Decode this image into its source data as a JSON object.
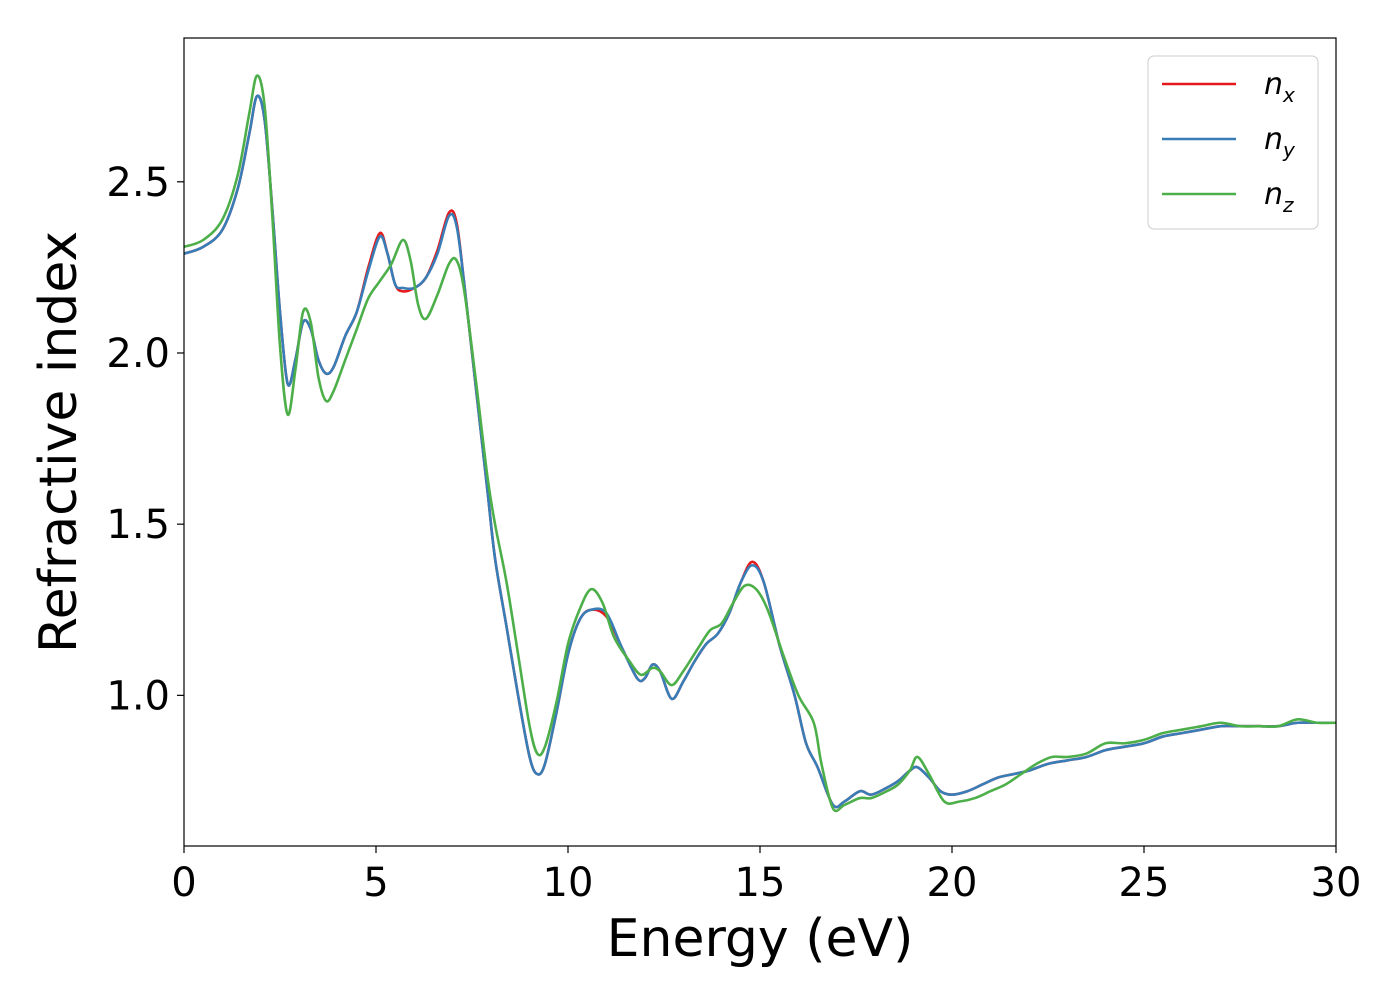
{
  "chart_data": {
    "type": "line",
    "title": "",
    "xlabel": "Energy (eV)",
    "ylabel": "Refractive index",
    "xlim": [
      0,
      30
    ],
    "ylim": [
      0.56,
      2.92
    ],
    "xticks": [
      0,
      5,
      10,
      15,
      20,
      25,
      30
    ],
    "yticks": [
      1.0,
      1.5,
      2.0,
      2.5
    ],
    "xtick_labels": [
      "0",
      "5",
      "10",
      "15",
      "20",
      "25",
      "30"
    ],
    "ytick_labels": [
      "1.0",
      "1.5",
      "2.0",
      "2.5"
    ],
    "grid": false,
    "legend_position": "top-right",
    "series": [
      {
        "name": "n",
        "subscript": "x",
        "color": "#e41a1c",
        "points": [
          [
            0,
            2.29
          ],
          [
            0.5,
            2.31
          ],
          [
            1.0,
            2.36
          ],
          [
            1.4,
            2.48
          ],
          [
            1.7,
            2.64
          ],
          [
            1.9,
            2.75
          ],
          [
            2.1,
            2.68
          ],
          [
            2.3,
            2.42
          ],
          [
            2.5,
            2.12
          ],
          [
            2.7,
            1.91
          ],
          [
            2.9,
            1.98
          ],
          [
            3.1,
            2.09
          ],
          [
            3.3,
            2.07
          ],
          [
            3.5,
            1.98
          ],
          [
            3.7,
            1.94
          ],
          [
            3.9,
            1.96
          ],
          [
            4.2,
            2.05
          ],
          [
            4.5,
            2.12
          ],
          [
            4.8,
            2.25
          ],
          [
            5.1,
            2.35
          ],
          [
            5.3,
            2.29
          ],
          [
            5.5,
            2.2
          ],
          [
            5.7,
            2.18
          ],
          [
            6.0,
            2.19
          ],
          [
            6.3,
            2.22
          ],
          [
            6.6,
            2.3
          ],
          [
            6.9,
            2.41
          ],
          [
            7.1,
            2.38
          ],
          [
            7.3,
            2.2
          ],
          [
            7.6,
            1.9
          ],
          [
            7.9,
            1.6
          ],
          [
            8.1,
            1.4
          ],
          [
            8.4,
            1.2
          ],
          [
            8.7,
            1.0
          ],
          [
            9.0,
            0.82
          ],
          [
            9.2,
            0.77
          ],
          [
            9.4,
            0.8
          ],
          [
            9.7,
            0.95
          ],
          [
            10.0,
            1.12
          ],
          [
            10.3,
            1.22
          ],
          [
            10.6,
            1.25
          ],
          [
            11.0,
            1.23
          ],
          [
            11.4,
            1.14
          ],
          [
            11.8,
            1.05
          ],
          [
            12.0,
            1.05
          ],
          [
            12.2,
            1.09
          ],
          [
            12.4,
            1.07
          ],
          [
            12.7,
            0.99
          ],
          [
            13.0,
            1.04
          ],
          [
            13.3,
            1.1
          ],
          [
            13.6,
            1.15
          ],
          [
            13.9,
            1.18
          ],
          [
            14.2,
            1.24
          ],
          [
            14.5,
            1.33
          ],
          [
            14.8,
            1.39
          ],
          [
            15.1,
            1.33
          ],
          [
            15.5,
            1.15
          ],
          [
            15.9,
            1.0
          ],
          [
            16.2,
            0.86
          ],
          [
            16.5,
            0.79
          ],
          [
            16.9,
            0.68
          ],
          [
            17.2,
            0.69
          ],
          [
            17.6,
            0.72
          ],
          [
            17.9,
            0.71
          ],
          [
            18.3,
            0.73
          ],
          [
            18.6,
            0.75
          ],
          [
            18.9,
            0.78
          ],
          [
            19.1,
            0.79
          ],
          [
            19.4,
            0.76
          ],
          [
            19.7,
            0.72
          ],
          [
            20.0,
            0.71
          ],
          [
            20.4,
            0.72
          ],
          [
            20.8,
            0.74
          ],
          [
            21.2,
            0.76
          ],
          [
            21.6,
            0.77
          ],
          [
            22.0,
            0.78
          ],
          [
            22.5,
            0.8
          ],
          [
            23.0,
            0.81
          ],
          [
            23.5,
            0.82
          ],
          [
            24.0,
            0.84
          ],
          [
            24.5,
            0.85
          ],
          [
            25.0,
            0.86
          ],
          [
            25.5,
            0.88
          ],
          [
            26.0,
            0.89
          ],
          [
            26.5,
            0.9
          ],
          [
            27.0,
            0.91
          ],
          [
            27.5,
            0.91
          ],
          [
            28.0,
            0.91
          ],
          [
            28.5,
            0.91
          ],
          [
            29.0,
            0.92
          ],
          [
            29.5,
            0.92
          ],
          [
            30.0,
            0.92
          ]
        ]
      },
      {
        "name": "n",
        "subscript": "y",
        "color": "#377eb8",
        "points": [
          [
            0,
            2.29
          ],
          [
            0.5,
            2.31
          ],
          [
            1.0,
            2.36
          ],
          [
            1.4,
            2.48
          ],
          [
            1.7,
            2.64
          ],
          [
            1.9,
            2.75
          ],
          [
            2.1,
            2.68
          ],
          [
            2.3,
            2.42
          ],
          [
            2.5,
            2.12
          ],
          [
            2.7,
            1.91
          ],
          [
            2.9,
            1.98
          ],
          [
            3.1,
            2.09
          ],
          [
            3.3,
            2.07
          ],
          [
            3.5,
            1.98
          ],
          [
            3.7,
            1.94
          ],
          [
            3.9,
            1.96
          ],
          [
            4.2,
            2.05
          ],
          [
            4.5,
            2.12
          ],
          [
            4.8,
            2.24
          ],
          [
            5.1,
            2.34
          ],
          [
            5.3,
            2.29
          ],
          [
            5.5,
            2.2
          ],
          [
            5.7,
            2.19
          ],
          [
            6.0,
            2.19
          ],
          [
            6.3,
            2.22
          ],
          [
            6.6,
            2.29
          ],
          [
            6.9,
            2.4
          ],
          [
            7.1,
            2.37
          ],
          [
            7.3,
            2.2
          ],
          [
            7.6,
            1.9
          ],
          [
            7.9,
            1.6
          ],
          [
            8.1,
            1.4
          ],
          [
            8.4,
            1.2
          ],
          [
            8.7,
            1.0
          ],
          [
            9.0,
            0.82
          ],
          [
            9.2,
            0.77
          ],
          [
            9.4,
            0.8
          ],
          [
            9.7,
            0.95
          ],
          [
            10.0,
            1.12
          ],
          [
            10.3,
            1.22
          ],
          [
            10.6,
            1.25
          ],
          [
            11.0,
            1.24
          ],
          [
            11.4,
            1.14
          ],
          [
            11.8,
            1.05
          ],
          [
            12.0,
            1.05
          ],
          [
            12.2,
            1.09
          ],
          [
            12.4,
            1.07
          ],
          [
            12.7,
            0.99
          ],
          [
            13.0,
            1.04
          ],
          [
            13.3,
            1.1
          ],
          [
            13.6,
            1.15
          ],
          [
            13.9,
            1.18
          ],
          [
            14.2,
            1.24
          ],
          [
            14.5,
            1.33
          ],
          [
            14.8,
            1.38
          ],
          [
            15.1,
            1.33
          ],
          [
            15.5,
            1.15
          ],
          [
            15.9,
            1.0
          ],
          [
            16.2,
            0.86
          ],
          [
            16.5,
            0.79
          ],
          [
            16.9,
            0.68
          ],
          [
            17.2,
            0.69
          ],
          [
            17.6,
            0.72
          ],
          [
            17.9,
            0.71
          ],
          [
            18.3,
            0.73
          ],
          [
            18.6,
            0.75
          ],
          [
            18.9,
            0.78
          ],
          [
            19.1,
            0.79
          ],
          [
            19.4,
            0.76
          ],
          [
            19.7,
            0.72
          ],
          [
            20.0,
            0.71
          ],
          [
            20.4,
            0.72
          ],
          [
            20.8,
            0.74
          ],
          [
            21.2,
            0.76
          ],
          [
            21.6,
            0.77
          ],
          [
            22.0,
            0.78
          ],
          [
            22.5,
            0.8
          ],
          [
            23.0,
            0.81
          ],
          [
            23.5,
            0.82
          ],
          [
            24.0,
            0.84
          ],
          [
            24.5,
            0.85
          ],
          [
            25.0,
            0.86
          ],
          [
            25.5,
            0.88
          ],
          [
            26.0,
            0.89
          ],
          [
            26.5,
            0.9
          ],
          [
            27.0,
            0.91
          ],
          [
            27.5,
            0.91
          ],
          [
            28.0,
            0.91
          ],
          [
            28.5,
            0.91
          ],
          [
            29.0,
            0.92
          ],
          [
            29.5,
            0.92
          ],
          [
            30.0,
            0.92
          ]
        ]
      },
      {
        "name": "n",
        "subscript": "z",
        "color": "#4daf4a",
        "points": [
          [
            0,
            2.31
          ],
          [
            0.5,
            2.33
          ],
          [
            1.0,
            2.39
          ],
          [
            1.4,
            2.52
          ],
          [
            1.7,
            2.7
          ],
          [
            1.9,
            2.81
          ],
          [
            2.1,
            2.72
          ],
          [
            2.3,
            2.4
          ],
          [
            2.5,
            2.02
          ],
          [
            2.7,
            1.82
          ],
          [
            2.9,
            1.95
          ],
          [
            3.1,
            2.12
          ],
          [
            3.3,
            2.09
          ],
          [
            3.5,
            1.93
          ],
          [
            3.7,
            1.86
          ],
          [
            3.9,
            1.89
          ],
          [
            4.2,
            1.98
          ],
          [
            4.5,
            2.07
          ],
          [
            4.8,
            2.16
          ],
          [
            5.1,
            2.21
          ],
          [
            5.4,
            2.26
          ],
          [
            5.7,
            2.33
          ],
          [
            5.9,
            2.27
          ],
          [
            6.1,
            2.14
          ],
          [
            6.3,
            2.1
          ],
          [
            6.6,
            2.17
          ],
          [
            6.9,
            2.26
          ],
          [
            7.1,
            2.27
          ],
          [
            7.3,
            2.18
          ],
          [
            7.6,
            1.92
          ],
          [
            7.9,
            1.64
          ],
          [
            8.1,
            1.5
          ],
          [
            8.4,
            1.33
          ],
          [
            8.7,
            1.12
          ],
          [
            9.0,
            0.91
          ],
          [
            9.2,
            0.83
          ],
          [
            9.4,
            0.85
          ],
          [
            9.7,
            0.98
          ],
          [
            10.0,
            1.15
          ],
          [
            10.3,
            1.25
          ],
          [
            10.6,
            1.31
          ],
          [
            10.9,
            1.27
          ],
          [
            11.2,
            1.17
          ],
          [
            11.6,
            1.1
          ],
          [
            11.9,
            1.06
          ],
          [
            12.2,
            1.08
          ],
          [
            12.4,
            1.07
          ],
          [
            12.7,
            1.03
          ],
          [
            13.0,
            1.07
          ],
          [
            13.4,
            1.14
          ],
          [
            13.7,
            1.19
          ],
          [
            14.0,
            1.21
          ],
          [
            14.3,
            1.27
          ],
          [
            14.6,
            1.32
          ],
          [
            14.9,
            1.31
          ],
          [
            15.2,
            1.25
          ],
          [
            15.6,
            1.12
          ],
          [
            16.0,
            1.0
          ],
          [
            16.4,
            0.92
          ],
          [
            16.6,
            0.8
          ],
          [
            16.9,
            0.67
          ],
          [
            17.2,
            0.68
          ],
          [
            17.6,
            0.7
          ],
          [
            17.9,
            0.7
          ],
          [
            18.3,
            0.72
          ],
          [
            18.6,
            0.74
          ],
          [
            18.9,
            0.78
          ],
          [
            19.1,
            0.82
          ],
          [
            19.4,
            0.77
          ],
          [
            19.8,
            0.69
          ],
          [
            20.2,
            0.69
          ],
          [
            20.6,
            0.7
          ],
          [
            21.0,
            0.72
          ],
          [
            21.4,
            0.74
          ],
          [
            21.8,
            0.77
          ],
          [
            22.2,
            0.8
          ],
          [
            22.6,
            0.82
          ],
          [
            23.0,
            0.82
          ],
          [
            23.5,
            0.83
          ],
          [
            24.0,
            0.86
          ],
          [
            24.5,
            0.86
          ],
          [
            25.0,
            0.87
          ],
          [
            25.5,
            0.89
          ],
          [
            26.0,
            0.9
          ],
          [
            26.5,
            0.91
          ],
          [
            27.0,
            0.92
          ],
          [
            27.5,
            0.91
          ],
          [
            28.0,
            0.91
          ],
          [
            28.5,
            0.91
          ],
          [
            29.0,
            0.93
          ],
          [
            29.5,
            0.92
          ],
          [
            30.0,
            0.92
          ]
        ]
      }
    ]
  }
}
